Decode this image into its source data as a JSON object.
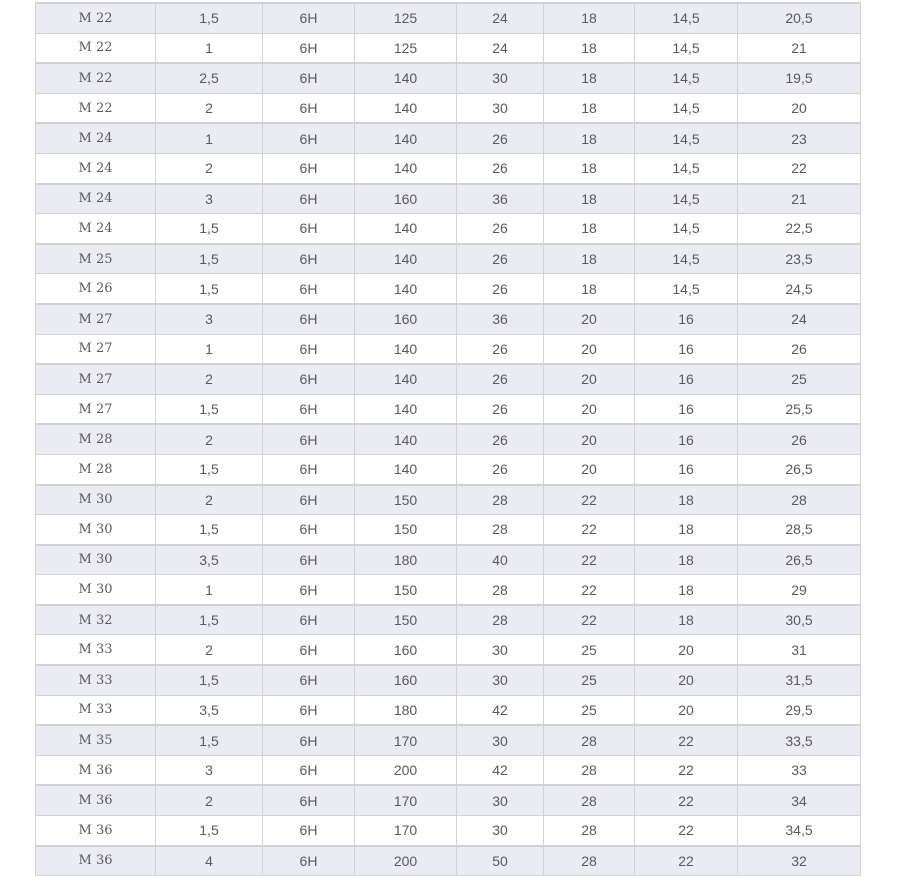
{
  "table": {
    "rows": [
      [
        "M 22",
        "1,5",
        "6H",
        "125",
        "24",
        "18",
        "14,5",
        "20,5"
      ],
      [
        "M 22",
        "1",
        "6H",
        "125",
        "24",
        "18",
        "14,5",
        "21"
      ],
      [
        "M 22",
        "2,5",
        "6H",
        "140",
        "30",
        "18",
        "14,5",
        "19,5"
      ],
      [
        "M 22",
        "2",
        "6H",
        "140",
        "30",
        "18",
        "14,5",
        "20"
      ],
      [
        "M 24",
        "1",
        "6H",
        "140",
        "26",
        "18",
        "14,5",
        "23"
      ],
      [
        "M 24",
        "2",
        "6H",
        "140",
        "26",
        "18",
        "14,5",
        "22"
      ],
      [
        "M 24",
        "3",
        "6H",
        "160",
        "36",
        "18",
        "14,5",
        "21"
      ],
      [
        "M 24",
        "1,5",
        "6H",
        "140",
        "26",
        "18",
        "14,5",
        "22,5"
      ],
      [
        "M 25",
        "1,5",
        "6H",
        "140",
        "26",
        "18",
        "14,5",
        "23,5"
      ],
      [
        "M 26",
        "1,5",
        "6H",
        "140",
        "26",
        "18",
        "14,5",
        "24,5"
      ],
      [
        "M 27",
        "3",
        "6H",
        "160",
        "36",
        "20",
        "16",
        "24"
      ],
      [
        "M 27",
        "1",
        "6H",
        "140",
        "26",
        "20",
        "16",
        "26"
      ],
      [
        "M 27",
        "2",
        "6H",
        "140",
        "26",
        "20",
        "16",
        "25"
      ],
      [
        "M 27",
        "1,5",
        "6H",
        "140",
        "26",
        "20",
        "16",
        "25,5"
      ],
      [
        "M 28",
        "2",
        "6H",
        "140",
        "26",
        "20",
        "16",
        "26"
      ],
      [
        "M 28",
        "1,5",
        "6H",
        "140",
        "26",
        "20",
        "16",
        "26,5"
      ],
      [
        "M 30",
        "2",
        "6H",
        "150",
        "28",
        "22",
        "18",
        "28"
      ],
      [
        "M 30",
        "1,5",
        "6H",
        "150",
        "28",
        "22",
        "18",
        "28,5"
      ],
      [
        "M 30",
        "3,5",
        "6H",
        "180",
        "40",
        "22",
        "18",
        "26,5"
      ],
      [
        "M 30",
        "1",
        "6H",
        "150",
        "28",
        "22",
        "18",
        "29"
      ],
      [
        "M 32",
        "1,5",
        "6H",
        "150",
        "28",
        "22",
        "18",
        "30,5"
      ],
      [
        "M 33",
        "2",
        "6H",
        "160",
        "30",
        "25",
        "20",
        "31"
      ],
      [
        "M 33",
        "1,5",
        "6H",
        "160",
        "30",
        "25",
        "20",
        "31,5"
      ],
      [
        "M 33",
        "3,5",
        "6H",
        "180",
        "42",
        "25",
        "20",
        "29,5"
      ],
      [
        "M 35",
        "1,5",
        "6H",
        "170",
        "30",
        "28",
        "22",
        "33,5"
      ],
      [
        "M 36",
        "3",
        "6H",
        "200",
        "42",
        "28",
        "22",
        "33"
      ],
      [
        "M 36",
        "2",
        "6H",
        "170",
        "30",
        "28",
        "22",
        "34"
      ],
      [
        "M 36",
        "1,5",
        "6H",
        "170",
        "30",
        "28",
        "22",
        "34,5"
      ],
      [
        "M 36",
        "4",
        "6H",
        "200",
        "50",
        "28",
        "22",
        "32"
      ]
    ],
    "stripe_color": "#ebebf3",
    "border_color": "#d2d2d6",
    "text_color": "#5a5a5a"
  }
}
